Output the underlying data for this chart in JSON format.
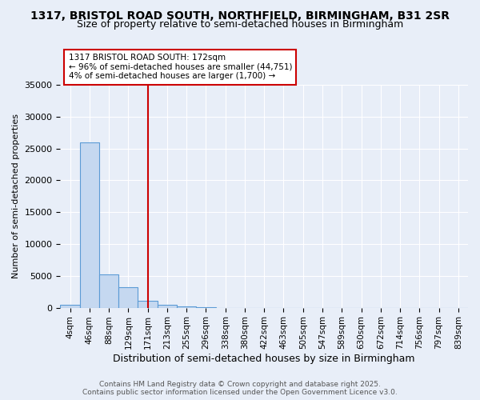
{
  "title": "1317, BRISTOL ROAD SOUTH, NORTHFIELD, BIRMINGHAM, B31 2SR",
  "subtitle": "Size of property relative to semi-detached houses in Birmingham",
  "xlabel": "Distribution of semi-detached houses by size in Birmingham",
  "ylabel": "Number of semi-detached properties",
  "bins": [
    "4sqm",
    "46sqm",
    "88sqm",
    "129sqm",
    "171sqm",
    "213sqm",
    "255sqm",
    "296sqm",
    "338sqm",
    "380sqm",
    "422sqm",
    "463sqm",
    "505sqm",
    "547sqm",
    "589sqm",
    "630sqm",
    "672sqm",
    "714sqm",
    "756sqm",
    "797sqm",
    "839sqm"
  ],
  "values": [
    400,
    26000,
    5200,
    3200,
    1100,
    450,
    200,
    30,
    0,
    0,
    0,
    0,
    0,
    0,
    0,
    0,
    0,
    0,
    0,
    0,
    0
  ],
  "bar_color": "#c5d8f0",
  "bar_edge_color": "#5b9bd5",
  "vline_x_index": 4,
  "vline_color": "#cc0000",
  "annotation_line1": "1317 BRISTOL ROAD SOUTH: 172sqm",
  "annotation_line2": "← 96% of semi-detached houses are smaller (44,751)",
  "annotation_line3": "4% of semi-detached houses are larger (1,700) →",
  "annotation_box_color": "#ffffff",
  "annotation_box_edge_color": "#cc0000",
  "ylim": [
    0,
    35000
  ],
  "yticks": [
    0,
    5000,
    10000,
    15000,
    20000,
    25000,
    30000,
    35000
  ],
  "background_color": "#e8eef8",
  "footer": "Contains HM Land Registry data © Crown copyright and database right 2025.\nContains public sector information licensed under the Open Government Licence v3.0.",
  "title_fontsize": 10,
  "subtitle_fontsize": 9,
  "grid_color": "#ffffff"
}
